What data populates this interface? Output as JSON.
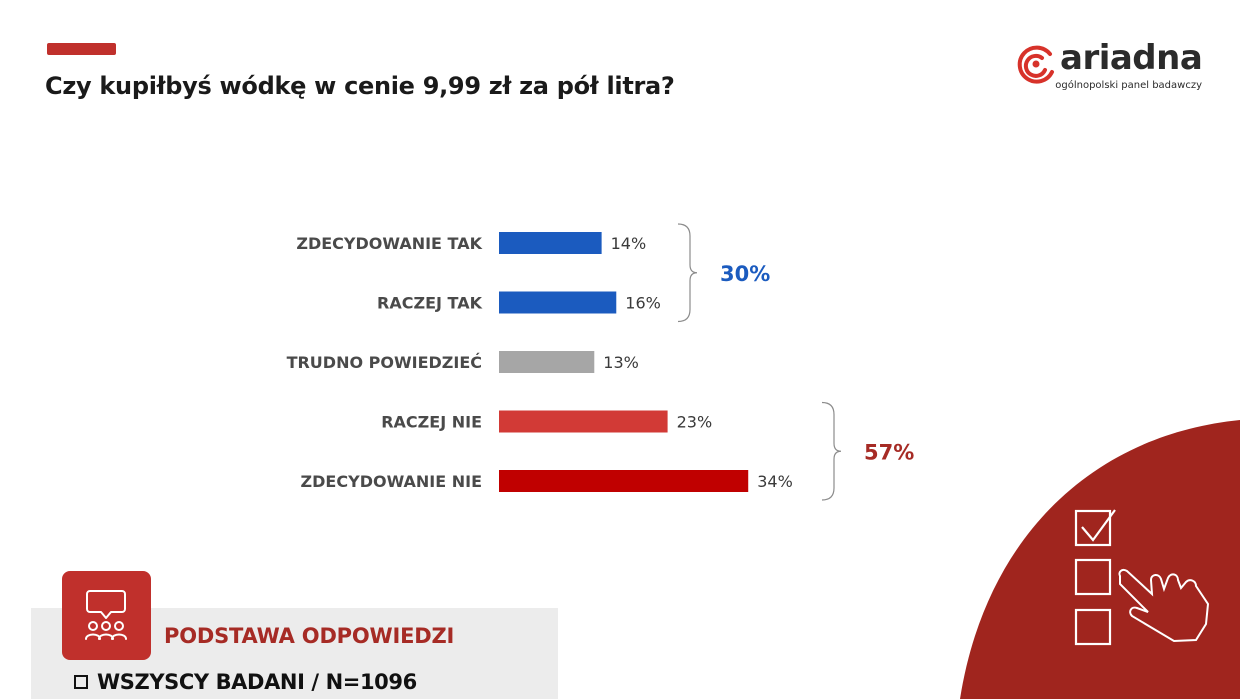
{
  "header": {
    "title": "Czy kupiłbyś wódkę w cenie 9,99 zł za pół litra?",
    "accent_color": "#c0302c"
  },
  "logo": {
    "word": "ariadna",
    "subtitle": "ogólnopolski panel badawczy",
    "icon": "ariadna-spiral-icon",
    "icon_color": "#d7322a"
  },
  "chart_data": {
    "type": "bar",
    "orientation": "horizontal",
    "categories": [
      "ZDECYDOWANIE TAK",
      "RACZEJ TAK",
      "TRUDNO POWIEDZIEĆ",
      "RACZEJ NIE",
      "ZDECYDOWANIE NIE"
    ],
    "values": [
      14,
      16,
      13,
      23,
      34
    ],
    "value_labels": [
      "14%",
      "16%",
      "13%",
      "23%",
      "34%"
    ],
    "colors": [
      "#1b5bbf",
      "#1b5bbf",
      "#a6a6a6",
      "#d23a36",
      "#c00000"
    ],
    "xlim": [
      0,
      40
    ],
    "grid": false,
    "groups": [
      {
        "label": "30%",
        "value": 30,
        "members": [
          0,
          1
        ],
        "color": "#1b5bbf"
      },
      {
        "label": "57%",
        "value": 57,
        "members": [
          3,
          4
        ],
        "color": "#a62b25"
      }
    ]
  },
  "base": {
    "title": "PODSTAWA ODPOWIEDZI",
    "item": "WSZYSCY BADANI / N=1096",
    "icon": "discussion-group-icon",
    "title_color": "#a62b25",
    "icon_bg": "#c0302c"
  },
  "decoration": {
    "icon": "checklist-hand-icon",
    "color": "#a0251e"
  }
}
